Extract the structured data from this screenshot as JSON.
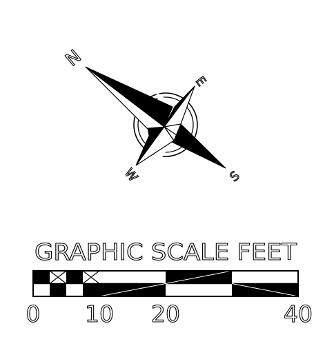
{
  "compass": {
    "north_label": "N",
    "east_label": "E",
    "south_label": "S",
    "west_label": "W"
  },
  "scale": {
    "title": "GRAPHIC SCALE FEET",
    "tick_labels": [
      "0",
      "10",
      "20",
      "40"
    ]
  },
  "colors": {
    "ink": "#000000",
    "paper": "#ffffff"
  },
  "icons": {
    "compass": "north-arrow-compass-rose-icon",
    "scale_bar": "graphic-scale-bar"
  }
}
